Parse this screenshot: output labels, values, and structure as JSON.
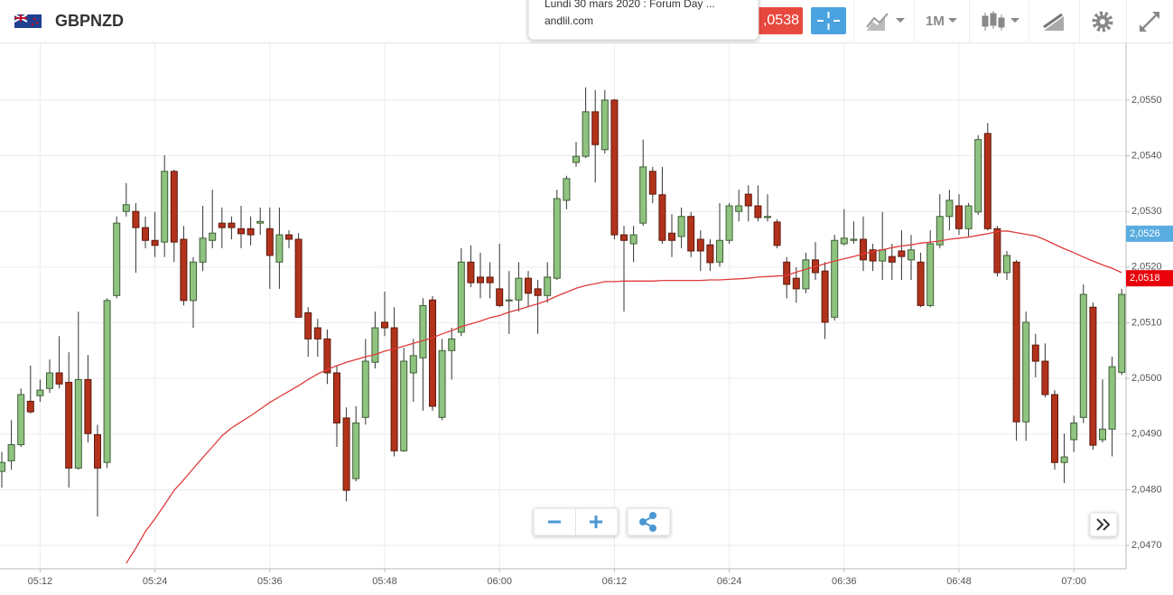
{
  "toolbar": {
    "symbol": "GBPNZD",
    "price": ",0538",
    "timeframe": "1M"
  },
  "popup": {
    "title": "Lundi 30 mars 2020 : Forum Day ...",
    "source": "andlil.com"
  },
  "chart_data": {
    "type": "candlestick",
    "categories": [
      null,
      null,
      null,
      null,
      "05:12",
      null,
      null,
      null,
      null,
      null,
      null,
      null,
      null,
      null,
      null,
      null,
      "05:24",
      null,
      null,
      null,
      null,
      null,
      null,
      null,
      null,
      null,
      null,
      null,
      "05:36",
      null,
      null,
      null,
      null,
      null,
      null,
      null,
      null,
      null,
      null,
      null,
      "05:48",
      null,
      null,
      null,
      null,
      null,
      null,
      null,
      null,
      null,
      null,
      null,
      "06:00",
      null,
      null,
      null,
      null,
      null,
      null,
      null,
      null,
      null,
      null,
      null,
      "06:12",
      null,
      null,
      null,
      null,
      null,
      null,
      null,
      null,
      null,
      null,
      null,
      "06:24",
      null,
      null,
      null,
      null,
      null,
      null,
      null,
      null,
      null,
      null,
      null,
      "06:36",
      null,
      null,
      null,
      null,
      null,
      null,
      null,
      null,
      null,
      null,
      null,
      "06:48",
      null,
      null,
      null,
      null,
      null,
      null,
      null,
      null,
      null,
      null,
      null,
      "07:00",
      null,
      null,
      null,
      null,
      null
    ],
    "open": [
      2.04833,
      2.04852,
      2.04881,
      2.04959,
      2.04969,
      2.04982,
      2.0501,
      2.04993,
      2.04839,
      2.04998,
      2.04899,
      2.04849,
      2.05149,
      2.053,
      2.053,
      2.05271,
      2.05248,
      2.05245,
      2.05372,
      2.0525,
      2.0514,
      2.05209,
      2.05248,
      2.05279,
      2.05279,
      2.05269,
      2.05269,
      2.05279,
      2.05269,
      2.05209,
      2.05258,
      2.0525,
      2.05118,
      2.05091,
      2.05071,
      2.0501,
      2.04929,
      2.0482,
      2.0493,
      2.05029,
      2.05101,
      2.05091,
      2.0487,
      2.0501,
      2.05037,
      2.05141,
      2.0493,
      2.0505,
      2.05083,
      2.05209,
      2.05182,
      2.05182,
      2.05161,
      2.0514,
      2.05141,
      2.0518,
      2.05161,
      2.05149,
      2.0518,
      2.0532,
      2.05388,
      2.05399,
      2.05479,
      2.05411,
      2.055,
      2.05258,
      2.05242,
      2.05279,
      2.05372,
      2.0533,
      2.05261,
      2.05255,
      2.05291,
      2.0525,
      2.0524,
      2.05209,
      2.05248,
      2.053,
      2.05331,
      2.0531,
      2.05289,
      2.05281,
      2.05209,
      2.0518,
      2.05161,
      2.05213,
      2.05193,
      2.0511,
      2.05242,
      2.05248,
      2.0525,
      2.05231,
      2.05211,
      2.05219,
      2.05229,
      2.05213,
      2.05209,
      2.05131,
      2.0524,
      2.05291,
      2.0531,
      2.05269,
      2.05299,
      2.0544,
      2.05269,
      2.0519,
      2.05209,
      2.04922,
      2.0506,
      2.05031,
      2.04971,
      2.04849,
      2.0489,
      2.0493,
      2.05128,
      2.0489,
      2.04909,
      2.05011
    ],
    "high": [
      2.04868,
      2.04925,
      2.04982,
      2.05023,
      2.04998,
      2.05034,
      2.05076,
      2.05047,
      2.0512,
      2.05042,
      2.04917,
      2.05144,
      2.05291,
      2.05351,
      2.05315,
      2.05291,
      2.05299,
      2.05401,
      2.05375,
      2.05274,
      2.05218,
      2.0531,
      2.05339,
      2.05307,
      2.05291,
      2.0531,
      2.05291,
      2.05307,
      2.05307,
      2.05307,
      2.05266,
      2.05261,
      2.05128,
      2.05107,
      2.05088,
      2.05023,
      2.04948,
      2.0495,
      2.05071,
      2.0512,
      2.05156,
      2.05128,
      2.05055,
      2.05071,
      2.05144,
      2.05148,
      2.05071,
      2.05091,
      2.05234,
      2.05239,
      2.05226,
      2.05209,
      2.05242,
      2.05193,
      2.05209,
      2.05193,
      2.05177,
      2.05209,
      2.05339,
      2.05364,
      2.05425,
      2.05523,
      2.05518,
      2.05518,
      2.05502,
      2.05274,
      2.05274,
      2.05429,
      2.0538,
      2.0538,
      2.05295,
      2.05307,
      2.05299,
      2.05266,
      2.0525,
      2.05315,
      2.05315,
      2.05339,
      2.05347,
      2.05347,
      2.05331,
      2.05286,
      2.05218,
      2.052,
      2.05226,
      2.05245,
      2.05209,
      2.05258,
      2.05304,
      2.05282,
      2.05291,
      2.05242,
      2.05299,
      2.05242,
      2.05266,
      2.05258,
      2.05226,
      2.05266,
      2.05331,
      2.05339,
      2.05331,
      2.05315,
      2.05437,
      2.05459,
      2.05274,
      2.05229,
      2.05213,
      2.0512,
      2.0508,
      2.05063,
      2.04979,
      2.04901,
      2.04933,
      2.05169,
      2.05136,
      2.04998,
      2.05039,
      2.05161
    ],
    "low": [
      2.04804,
      2.04836,
      2.04877,
      2.04937,
      2.04958,
      2.04974,
      2.04982,
      2.04804,
      2.04836,
      2.04885,
      2.04752,
      2.04839,
      2.05144,
      2.05291,
      2.0519,
      2.05234,
      2.05218,
      2.05218,
      2.05209,
      2.05131,
      2.05091,
      2.05193,
      2.05234,
      2.05234,
      2.0525,
      2.05234,
      2.05239,
      2.05258,
      2.05161,
      2.05161,
      2.05234,
      2.05109,
      2.05039,
      2.05039,
      2.0499,
      2.04877,
      2.04779,
      2.04815,
      2.04917,
      2.05018,
      2.05076,
      2.0486,
      2.04868,
      2.04958,
      2.04942,
      2.04942,
      2.04925,
      2.04998,
      2.05076,
      2.05164,
      2.05144,
      2.05144,
      2.05128,
      2.0508,
      2.0512,
      2.05128,
      2.0508,
      2.05136,
      2.05177,
      2.05304,
      2.0538,
      2.05396,
      2.05352,
      2.05404,
      2.0525,
      2.0512,
      2.05209,
      2.05274,
      2.05315,
      2.05242,
      2.05218,
      2.05234,
      2.05218,
      2.05193,
      2.05193,
      2.05201,
      2.05242,
      2.05282,
      2.05282,
      2.05282,
      2.05282,
      2.05234,
      2.05144,
      2.05136,
      2.05153,
      2.05177,
      2.05071,
      2.05104,
      2.05239,
      2.05242,
      2.05193,
      2.05193,
      2.05177,
      2.05177,
      2.05177,
      2.05177,
      2.05128,
      2.05128,
      2.05234,
      2.05266,
      2.05258,
      2.05255,
      2.05294,
      2.05266,
      2.05183,
      2.05177,
      2.04888,
      2.04888,
      2.05002,
      2.04966,
      2.04836,
      2.04812,
      2.04868,
      2.0492,
      2.04872,
      2.04885,
      2.0486,
      2.05006
    ],
    "close": [
      2.04849,
      2.04881,
      2.04971,
      2.0494,
      2.04979,
      2.0501,
      2.0499,
      2.04839,
      2.04998,
      2.04901,
      2.04839,
      2.0514,
      2.05279,
      2.05312,
      2.05271,
      2.05248,
      2.05239,
      2.05372,
      2.05245,
      2.0514,
      2.05209,
      2.05252,
      2.05261,
      2.05271,
      2.05271,
      2.0526,
      2.05258,
      2.05282,
      2.05221,
      2.05258,
      2.0525,
      2.0511,
      2.05071,
      2.05071,
      2.0501,
      2.0492,
      2.04799,
      2.0492,
      2.05031,
      2.05091,
      2.05091,
      2.0487,
      2.05031,
      2.05041,
      2.05131,
      2.0495,
      2.0505,
      2.05071,
      2.05209,
      2.05172,
      2.05172,
      2.05172,
      2.05131,
      2.05141,
      2.0518,
      2.05153,
      2.05149,
      2.05182,
      2.05323,
      2.05359,
      2.05399,
      2.05479,
      2.0542,
      2.055,
      2.05258,
      2.05248,
      2.05258,
      2.0538,
      2.05331,
      2.05248,
      2.05248,
      2.05291,
      2.05229,
      2.05229,
      2.05208,
      2.05248,
      2.0531,
      2.0531,
      2.0531,
      2.05289,
      2.05291,
      2.05239,
      2.05169,
      2.05161,
      2.05213,
      2.0519,
      2.05101,
      2.05248,
      2.05252,
      2.0525,
      2.05213,
      2.05211,
      2.05231,
      2.05209,
      2.05219,
      2.05231,
      2.05131,
      2.05242,
      2.05291,
      2.0532,
      2.05269,
      2.0531,
      2.05429,
      2.05269,
      2.0519,
      2.05221,
      2.04922,
      2.05101,
      2.05031,
      2.04971,
      2.04849,
      2.04859,
      2.0492,
      2.05151,
      2.0488,
      2.04909,
      2.05021,
      2.05151
    ],
    "up_color": "#8fc380",
    "down_color": "#b2321b",
    "ma": {
      "color": "#e03a3a",
      "values": [
        null,
        null,
        null,
        null,
        null,
        null,
        null,
        null,
        null,
        null,
        null,
        null,
        null,
        2.04668,
        2.04695,
        2.04725,
        2.04748,
        2.04773,
        2.04799,
        2.04818,
        2.04838,
        2.04858,
        2.04877,
        2.04897,
        2.04911,
        2.04922,
        2.04933,
        2.04945,
        2.04957,
        2.04967,
        2.04977,
        2.04987,
        2.04998,
        2.05008,
        2.05016,
        2.05023,
        2.05029,
        2.05034,
        2.05039,
        2.05043,
        2.05049,
        2.05053,
        2.05058,
        2.05063,
        2.05068,
        2.05073,
        2.0508,
        2.05086,
        2.05093,
        2.05098,
        2.05103,
        2.05109,
        2.05113,
        2.05119,
        2.05124,
        2.05129,
        2.05134,
        2.0514,
        2.05148,
        2.05155,
        2.05162,
        2.05167,
        2.0517,
        2.05174,
        2.05174,
        2.05175,
        2.05175,
        2.05175,
        2.05175,
        2.05176,
        2.05176,
        2.05176,
        2.05176,
        2.05176,
        2.05177,
        2.05177,
        2.05178,
        2.05179,
        2.0518,
        2.05182,
        2.05183,
        2.05184,
        2.05185,
        2.05191,
        2.05196,
        2.05201,
        2.05206,
        2.05211,
        2.05215,
        2.05219,
        2.05224,
        2.05228,
        2.05231,
        2.05235,
        2.05238,
        2.0524,
        2.05243,
        2.05245,
        2.05247,
        2.0525,
        2.05252,
        2.05254,
        2.05257,
        2.0526,
        2.05264,
        2.05265,
        2.05262,
        2.05259,
        2.05256,
        2.05249,
        2.05241,
        2.05233,
        2.05226,
        2.05218,
        2.05211,
        2.05204,
        2.05198,
        2.0519
      ]
    },
    "price_markers": [
      {
        "value": 2.0526,
        "label": "2,0526",
        "color": "#5aade0"
      },
      {
        "value": 2.0518,
        "label": "2,0518",
        "color": "#e8000b"
      }
    ],
    "ylim": [
      2.04658,
      2.05602
    ],
    "yticks": [
      {
        "value": 2.047,
        "label": "2,0470"
      },
      {
        "value": 2.048,
        "label": "2,0480"
      },
      {
        "value": 2.049,
        "label": "2,0490"
      },
      {
        "value": 2.05,
        "label": "2,0500"
      },
      {
        "value": 2.051,
        "label": "2,0510"
      },
      {
        "value": 2.052,
        "label": "2,0520"
      },
      {
        "value": 2.053,
        "label": "2,0530"
      },
      {
        "value": 2.054,
        "label": "2,0540"
      },
      {
        "value": 2.055,
        "label": "2,0550"
      }
    ],
    "grid": true
  }
}
